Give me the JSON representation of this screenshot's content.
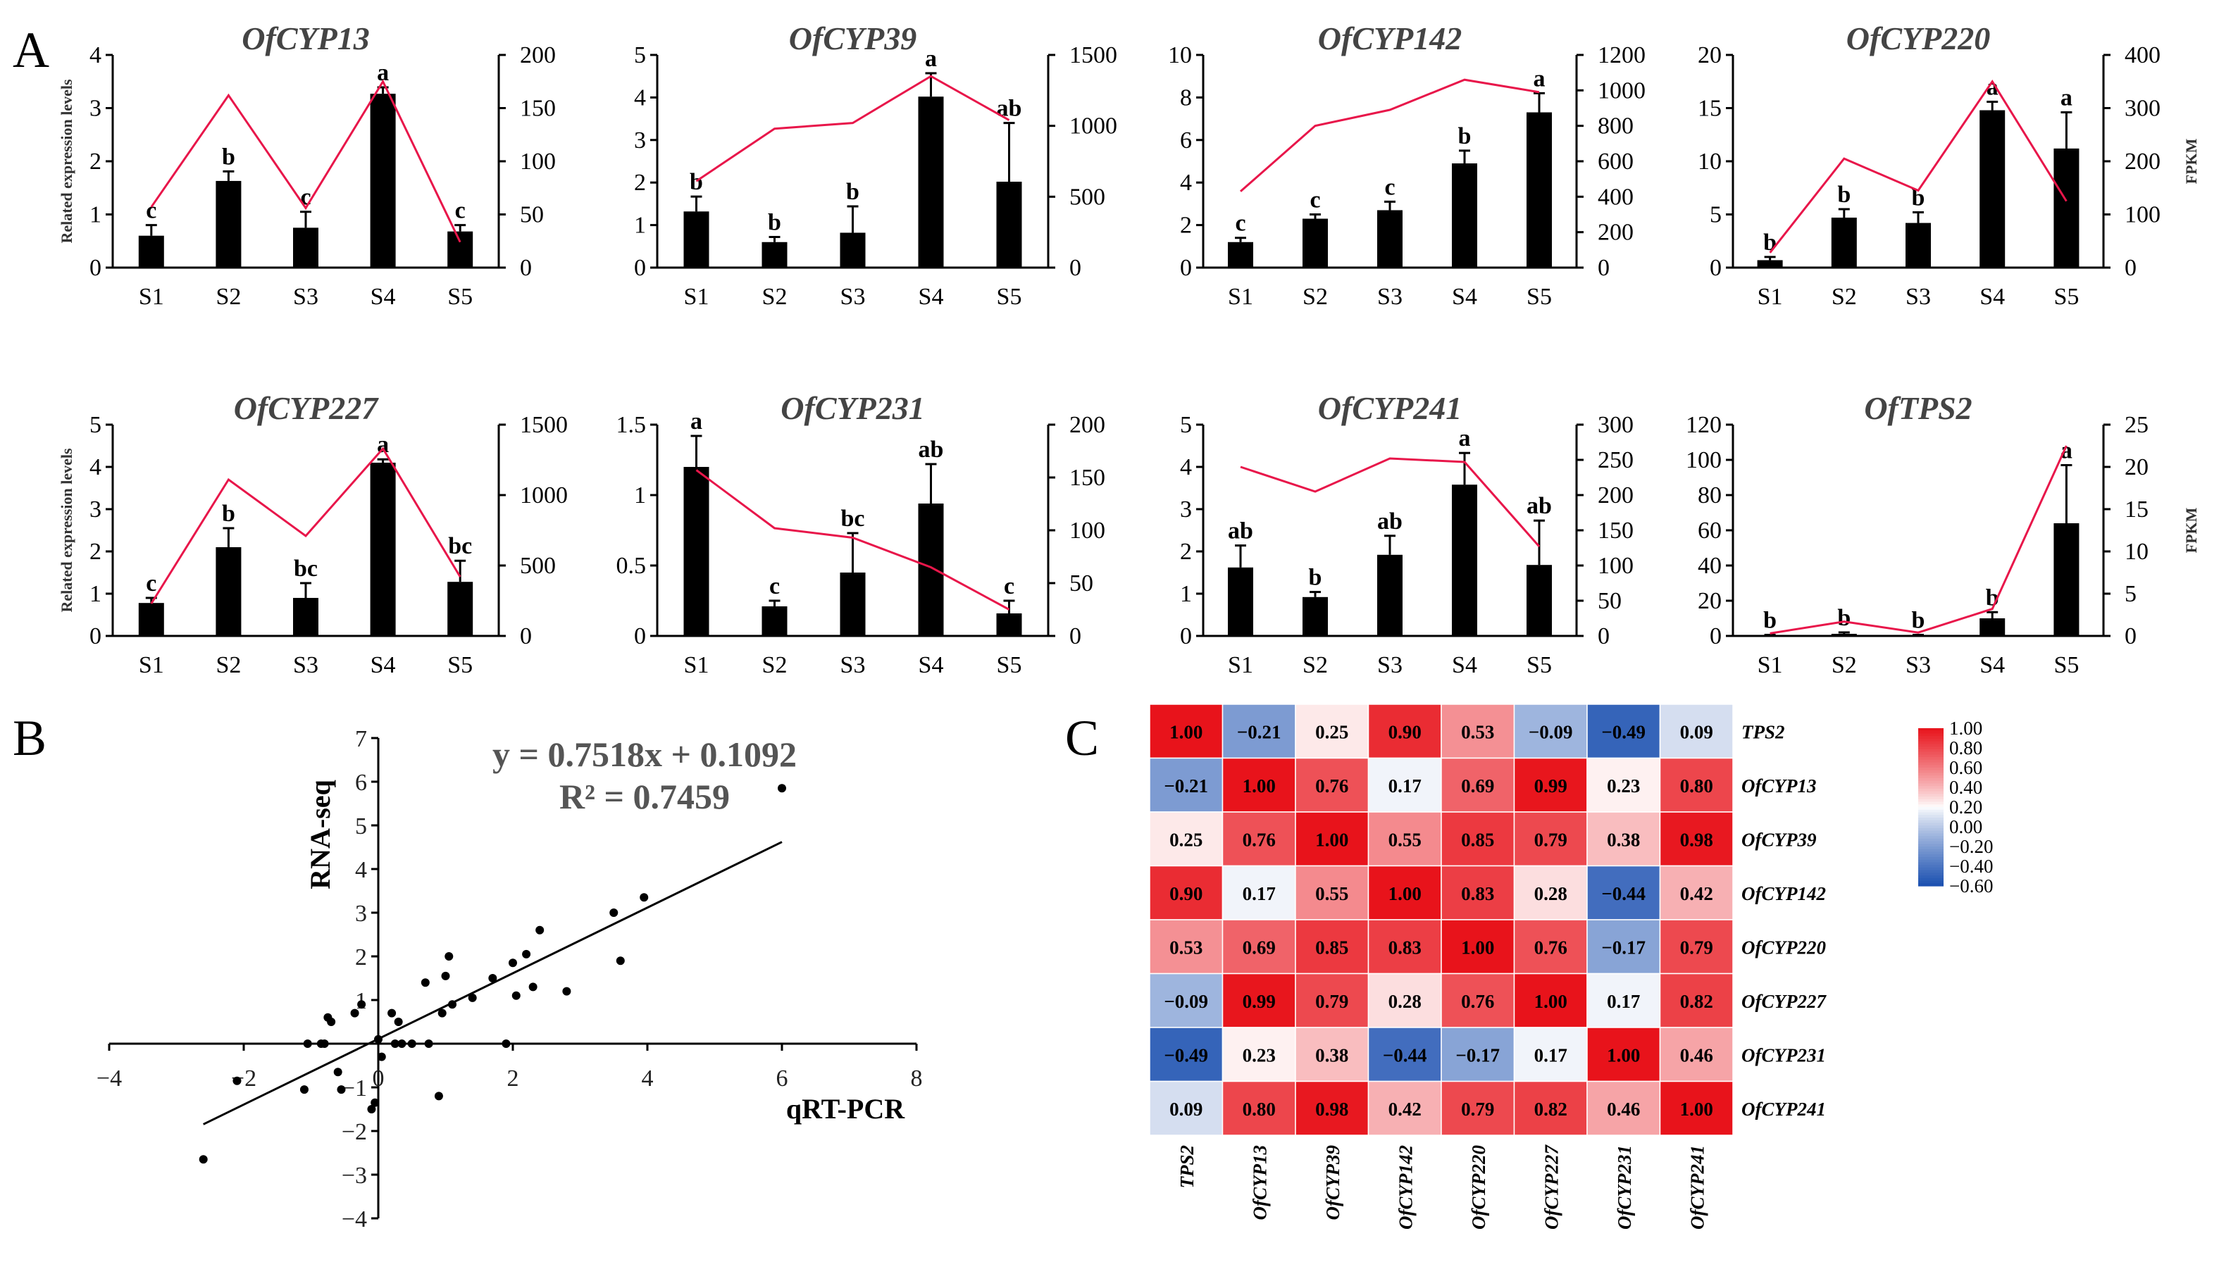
{
  "panels": {
    "a_label": "A",
    "b_label": "B",
    "c_label": "C"
  },
  "colors": {
    "bar": "#000000",
    "line": "#e8164a",
    "scatter_point": "#000000",
    "heat_low": "#1a4fb0",
    "heat_mid": "#ffffff",
    "heat_high": "#e8131b"
  },
  "chart_data": [
    {
      "type": "bar",
      "title": "OfCYP13",
      "ylabel": "Related expression levels",
      "y2label": "",
      "categories": [
        "S1",
        "S2",
        "S3",
        "S4",
        "S5"
      ],
      "ylim": [
        0,
        4
      ],
      "yticks": [
        0,
        1,
        2,
        3,
        4
      ],
      "y2lim": [
        0,
        200
      ],
      "y2ticks": [
        0,
        50,
        100,
        150,
        200
      ],
      "series": [
        {
          "name": "qRT-PCR",
          "kind": "bar",
          "axis": "left",
          "values": [
            0.6,
            1.63,
            0.75,
            3.27,
            0.68
          ],
          "errors": [
            0.2,
            0.18,
            0.3,
            0.12,
            0.12
          ],
          "letters": [
            "c",
            "b",
            "c",
            "a",
            "c"
          ]
        },
        {
          "name": "FPKM",
          "kind": "line",
          "axis": "right",
          "values": [
            57,
            162,
            56,
            175,
            24
          ]
        }
      ]
    },
    {
      "type": "bar",
      "title": "OfCYP39",
      "ylabel": "",
      "y2label": "",
      "categories": [
        "S1",
        "S2",
        "S3",
        "S4",
        "S5"
      ],
      "ylim": [
        0,
        5
      ],
      "yticks": [
        0,
        1,
        2,
        3,
        4,
        5
      ],
      "y2lim": [
        0,
        1500
      ],
      "y2ticks": [
        0,
        500,
        1000,
        1500
      ],
      "series": [
        {
          "name": "qRT-PCR",
          "kind": "bar",
          "axis": "left",
          "values": [
            1.32,
            0.6,
            0.82,
            4.02,
            2.02
          ],
          "errors": [
            0.35,
            0.12,
            0.62,
            0.55,
            1.38
          ],
          "letters": [
            "b",
            "b",
            "b",
            "a",
            "ab"
          ]
        },
        {
          "name": "FPKM",
          "kind": "line",
          "axis": "right",
          "values": [
            610,
            980,
            1020,
            1350,
            1040
          ]
        }
      ]
    },
    {
      "type": "bar",
      "title": "OfCYP142",
      "ylabel": "",
      "y2label": "",
      "categories": [
        "S1",
        "S2",
        "S3",
        "S4",
        "S5"
      ],
      "ylim": [
        0,
        10
      ],
      "yticks": [
        0,
        2,
        4,
        6,
        8,
        10
      ],
      "y2lim": [
        0,
        1200
      ],
      "y2ticks": [
        0,
        200,
        400,
        600,
        800,
        1000,
        1200
      ],
      "series": [
        {
          "name": "qRT-PCR",
          "kind": "bar",
          "axis": "left",
          "values": [
            1.2,
            2.3,
            2.7,
            4.9,
            7.3
          ],
          "errors": [
            0.2,
            0.2,
            0.4,
            0.6,
            0.9
          ],
          "letters": [
            "c",
            "c",
            "c",
            "b",
            "a"
          ]
        },
        {
          "name": "FPKM",
          "kind": "line",
          "axis": "right",
          "values": [
            430,
            800,
            890,
            1060,
            990
          ]
        }
      ]
    },
    {
      "type": "bar",
      "title": "OfCYP220",
      "ylabel": "",
      "y2label": "FPKM",
      "categories": [
        "S1",
        "S2",
        "S3",
        "S4",
        "S5"
      ],
      "ylim": [
        0,
        20
      ],
      "yticks": [
        0,
        5,
        10,
        15,
        20
      ],
      "y2lim": [
        0,
        400
      ],
      "y2ticks": [
        0,
        100,
        200,
        300,
        400
      ],
      "series": [
        {
          "name": "qRT-PCR",
          "kind": "bar",
          "axis": "left",
          "values": [
            0.7,
            4.7,
            4.2,
            14.8,
            11.2
          ],
          "errors": [
            0.3,
            0.8,
            1.0,
            0.8,
            3.4
          ],
          "letters": [
            "b",
            "b",
            "b",
            "a",
            "a"
          ]
        },
        {
          "name": "FPKM",
          "kind": "line",
          "axis": "right",
          "values": [
            28,
            205,
            145,
            350,
            125
          ]
        }
      ]
    },
    {
      "type": "bar",
      "title": "OfCYP227",
      "ylabel": "Related expression levels",
      "y2label": "",
      "categories": [
        "S1",
        "S2",
        "S3",
        "S4",
        "S5"
      ],
      "ylim": [
        0,
        5
      ],
      "yticks": [
        0,
        1,
        2,
        3,
        4,
        5
      ],
      "y2lim": [
        0,
        1500
      ],
      "y2ticks": [
        0,
        500,
        1000,
        1500
      ],
      "series": [
        {
          "name": "qRT-PCR",
          "kind": "bar",
          "axis": "left",
          "values": [
            0.78,
            2.1,
            0.9,
            4.1,
            1.28
          ],
          "errors": [
            0.12,
            0.45,
            0.35,
            0.08,
            0.5
          ],
          "letters": [
            "c",
            "b",
            "bc",
            "a",
            "bc"
          ]
        },
        {
          "name": "FPKM",
          "kind": "line",
          "axis": "right",
          "values": [
            230,
            1110,
            710,
            1330,
            420
          ]
        }
      ]
    },
    {
      "type": "bar",
      "title": "OfCYP231",
      "ylabel": "",
      "y2label": "",
      "categories": [
        "S1",
        "S2",
        "S3",
        "S4",
        "S5"
      ],
      "ylim": [
        0,
        1.5
      ],
      "yticks": [
        0,
        0.5,
        1,
        1.5
      ],
      "y2lim": [
        0,
        200
      ],
      "y2ticks": [
        0,
        50,
        100,
        150,
        200
      ],
      "series": [
        {
          "name": "qRT-PCR",
          "kind": "bar",
          "axis": "left",
          "values": [
            1.2,
            0.21,
            0.45,
            0.94,
            0.16
          ],
          "errors": [
            0.22,
            0.04,
            0.28,
            0.28,
            0.09
          ],
          "letters": [
            "a",
            "c",
            "bc",
            "ab",
            "c"
          ]
        },
        {
          "name": "FPKM",
          "kind": "line",
          "axis": "right",
          "values": [
            157,
            102,
            93,
            65,
            25
          ]
        }
      ]
    },
    {
      "type": "bar",
      "title": "OfCYP241",
      "ylabel": "",
      "y2label": "",
      "categories": [
        "S1",
        "S2",
        "S3",
        "S4",
        "S5"
      ],
      "ylim": [
        0,
        5
      ],
      "yticks": [
        0,
        1,
        2,
        3,
        4,
        5
      ],
      "y2lim": [
        0,
        300
      ],
      "y2ticks": [
        0,
        50,
        100,
        150,
        200,
        250,
        300
      ],
      "series": [
        {
          "name": "qRT-PCR",
          "kind": "bar",
          "axis": "left",
          "values": [
            1.62,
            0.92,
            1.92,
            3.58,
            1.68
          ],
          "errors": [
            0.52,
            0.12,
            0.45,
            0.75,
            1.05
          ],
          "letters": [
            "ab",
            "b",
            "ab",
            "a",
            "ab"
          ]
        },
        {
          "name": "FPKM",
          "kind": "line",
          "axis": "right",
          "values": [
            240,
            205,
            252,
            247,
            127
          ]
        }
      ]
    },
    {
      "type": "bar",
      "title": "OfTPS2",
      "ylabel": "",
      "y2label": "FPKM",
      "categories": [
        "S1",
        "S2",
        "S3",
        "S4",
        "S5"
      ],
      "ylim": [
        0,
        120
      ],
      "yticks": [
        0,
        20,
        40,
        60,
        80,
        100,
        120
      ],
      "y2lim": [
        0,
        25
      ],
      "y2ticks": [
        0,
        5,
        10,
        15,
        20,
        25
      ],
      "series": [
        {
          "name": "qRT-PCR",
          "kind": "bar",
          "axis": "left",
          "values": [
            0.3,
            1.2,
            0.3,
            10,
            64
          ],
          "errors": [
            0.3,
            0.8,
            0.3,
            3.5,
            33
          ],
          "letters": [
            "b",
            "b",
            "b",
            "b",
            "a"
          ]
        },
        {
          "name": "FPKM",
          "kind": "line",
          "axis": "right",
          "values": [
            0.3,
            1.7,
            0.4,
            3.2,
            22.5
          ]
        }
      ]
    },
    {
      "type": "scatter",
      "title": "",
      "xlabel": "qRT-PCR",
      "ylabel": "RNA-seq",
      "xlim": [
        -4,
        8
      ],
      "ylim": [
        -4,
        7
      ],
      "xticks": [
        -4,
        -2,
        0,
        2,
        4,
        6,
        8
      ],
      "yticks": [
        -4,
        -3,
        -2,
        -1,
        1,
        2,
        3,
        4,
        5,
        6,
        7
      ],
      "equation": "y = 0.7518x + 0.1092",
      "r2": "R² = 0.7459",
      "fit": {
        "slope": 0.7518,
        "intercept": 0.1092,
        "x_range": [
          -2.6,
          6
        ]
      },
      "points": [
        [
          6.0,
          5.85
        ],
        [
          3.95,
          3.35
        ],
        [
          3.5,
          3.0
        ],
        [
          3.6,
          1.9
        ],
        [
          2.8,
          1.2
        ],
        [
          2.4,
          2.6
        ],
        [
          2.3,
          1.3
        ],
        [
          2.2,
          2.05
        ],
        [
          2.0,
          1.85
        ],
        [
          2.05,
          1.1
        ],
        [
          1.7,
          1.5
        ],
        [
          1.4,
          1.05
        ],
        [
          1.1,
          0.9
        ],
        [
          1.05,
          2.0
        ],
        [
          1.0,
          1.55
        ],
        [
          0.95,
          0.7
        ],
        [
          0.7,
          1.4
        ],
        [
          0.75,
          0.0
        ],
        [
          0.5,
          0.0
        ],
        [
          0.35,
          0.0
        ],
        [
          0.25,
          0.0
        ],
        [
          0.3,
          0.5
        ],
        [
          0.2,
          0.7
        ],
        [
          0.05,
          -0.3
        ],
        [
          0.0,
          0.1
        ],
        [
          -0.25,
          0.9
        ],
        [
          -0.35,
          0.7
        ],
        [
          -0.7,
          0.5
        ],
        [
          -0.75,
          0.6
        ],
        [
          -0.8,
          0.0
        ],
        [
          -0.85,
          0.0
        ],
        [
          -1.05,
          0.0
        ],
        [
          -0.6,
          -0.65
        ],
        [
          -1.1,
          -1.05
        ],
        [
          -0.55,
          -1.05
        ],
        [
          -0.1,
          -1.5
        ],
        [
          -0.05,
          -1.35
        ],
        [
          0.9,
          -1.2
        ],
        [
          1.9,
          0.0
        ],
        [
          -2.1,
          -0.85
        ],
        [
          -2.6,
          -2.65
        ]
      ]
    },
    {
      "type": "heatmap",
      "title": "",
      "rows": [
        "TPS2",
        "OfCYP13",
        "OfCYP39",
        "OfCYP142",
        "OfCYP220",
        "OfCYP227",
        "OfCYP231",
        "OfCYP241"
      ],
      "cols": [
        "TPS2",
        "OfCYP13",
        "OfCYP39",
        "OfCYP142",
        "OfCYP220",
        "OfCYP227",
        "OfCYP231",
        "OfCYP241"
      ],
      "values": [
        [
          1.0,
          -0.21,
          0.25,
          0.9,
          0.53,
          -0.09,
          -0.49,
          0.09
        ],
        [
          -0.21,
          1.0,
          0.76,
          0.17,
          0.69,
          0.99,
          0.23,
          0.8
        ],
        [
          0.25,
          0.76,
          1.0,
          0.55,
          0.85,
          0.79,
          0.38,
          0.98
        ],
        [
          0.9,
          0.17,
          0.55,
          1.0,
          0.83,
          0.28,
          -0.44,
          0.42
        ],
        [
          0.53,
          0.69,
          0.85,
          0.83,
          1.0,
          0.76,
          -0.17,
          0.79
        ],
        [
          -0.09,
          0.99,
          0.79,
          0.28,
          0.76,
          1.0,
          0.17,
          0.82
        ],
        [
          -0.49,
          0.23,
          0.38,
          -0.44,
          -0.17,
          0.17,
          1.0,
          0.46
        ],
        [
          0.09,
          0.8,
          0.98,
          0.42,
          0.79,
          0.82,
          0.46,
          1.0
        ]
      ],
      "vmin": -0.6,
      "vmax": 1.0,
      "colorbar_ticks": [
        "1.00",
        "0.80",
        "0.60",
        "0.40",
        "0.20",
        "0.00",
        "−0.20",
        "−0.40",
        "−0.60"
      ]
    }
  ]
}
